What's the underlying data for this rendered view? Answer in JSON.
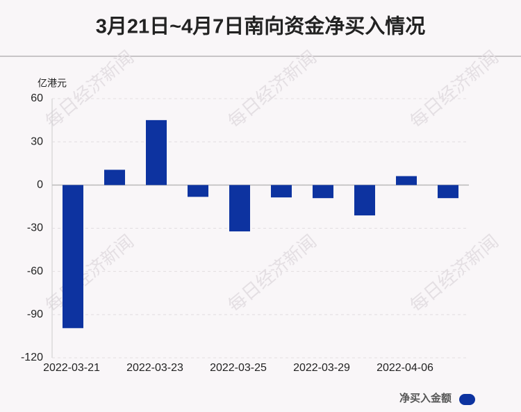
{
  "chart_data": {
    "type": "bar",
    "title": "3月21日~4月7日南向资金净买入情况",
    "y_axis_label": "亿港元",
    "watermark": "每日经济新闻",
    "categories": [
      "2022-03-21",
      null,
      "2022-03-23",
      null,
      "2022-03-25",
      null,
      "2022-03-29",
      null,
      "2022-04-06",
      null
    ],
    "series": [
      {
        "name": "净买入金额",
        "color": "#0d33a0",
        "values": [
          -99.4,
          10.6,
          45.1,
          -8.2,
          -32.2,
          -8.6,
          -9.1,
          -21.1,
          6.2,
          -9.1
        ]
      }
    ],
    "ylim": [
      -120,
      60
    ],
    "yticks": [
      -120,
      -90,
      -60,
      -30,
      0,
      30,
      60
    ],
    "grid": true
  }
}
